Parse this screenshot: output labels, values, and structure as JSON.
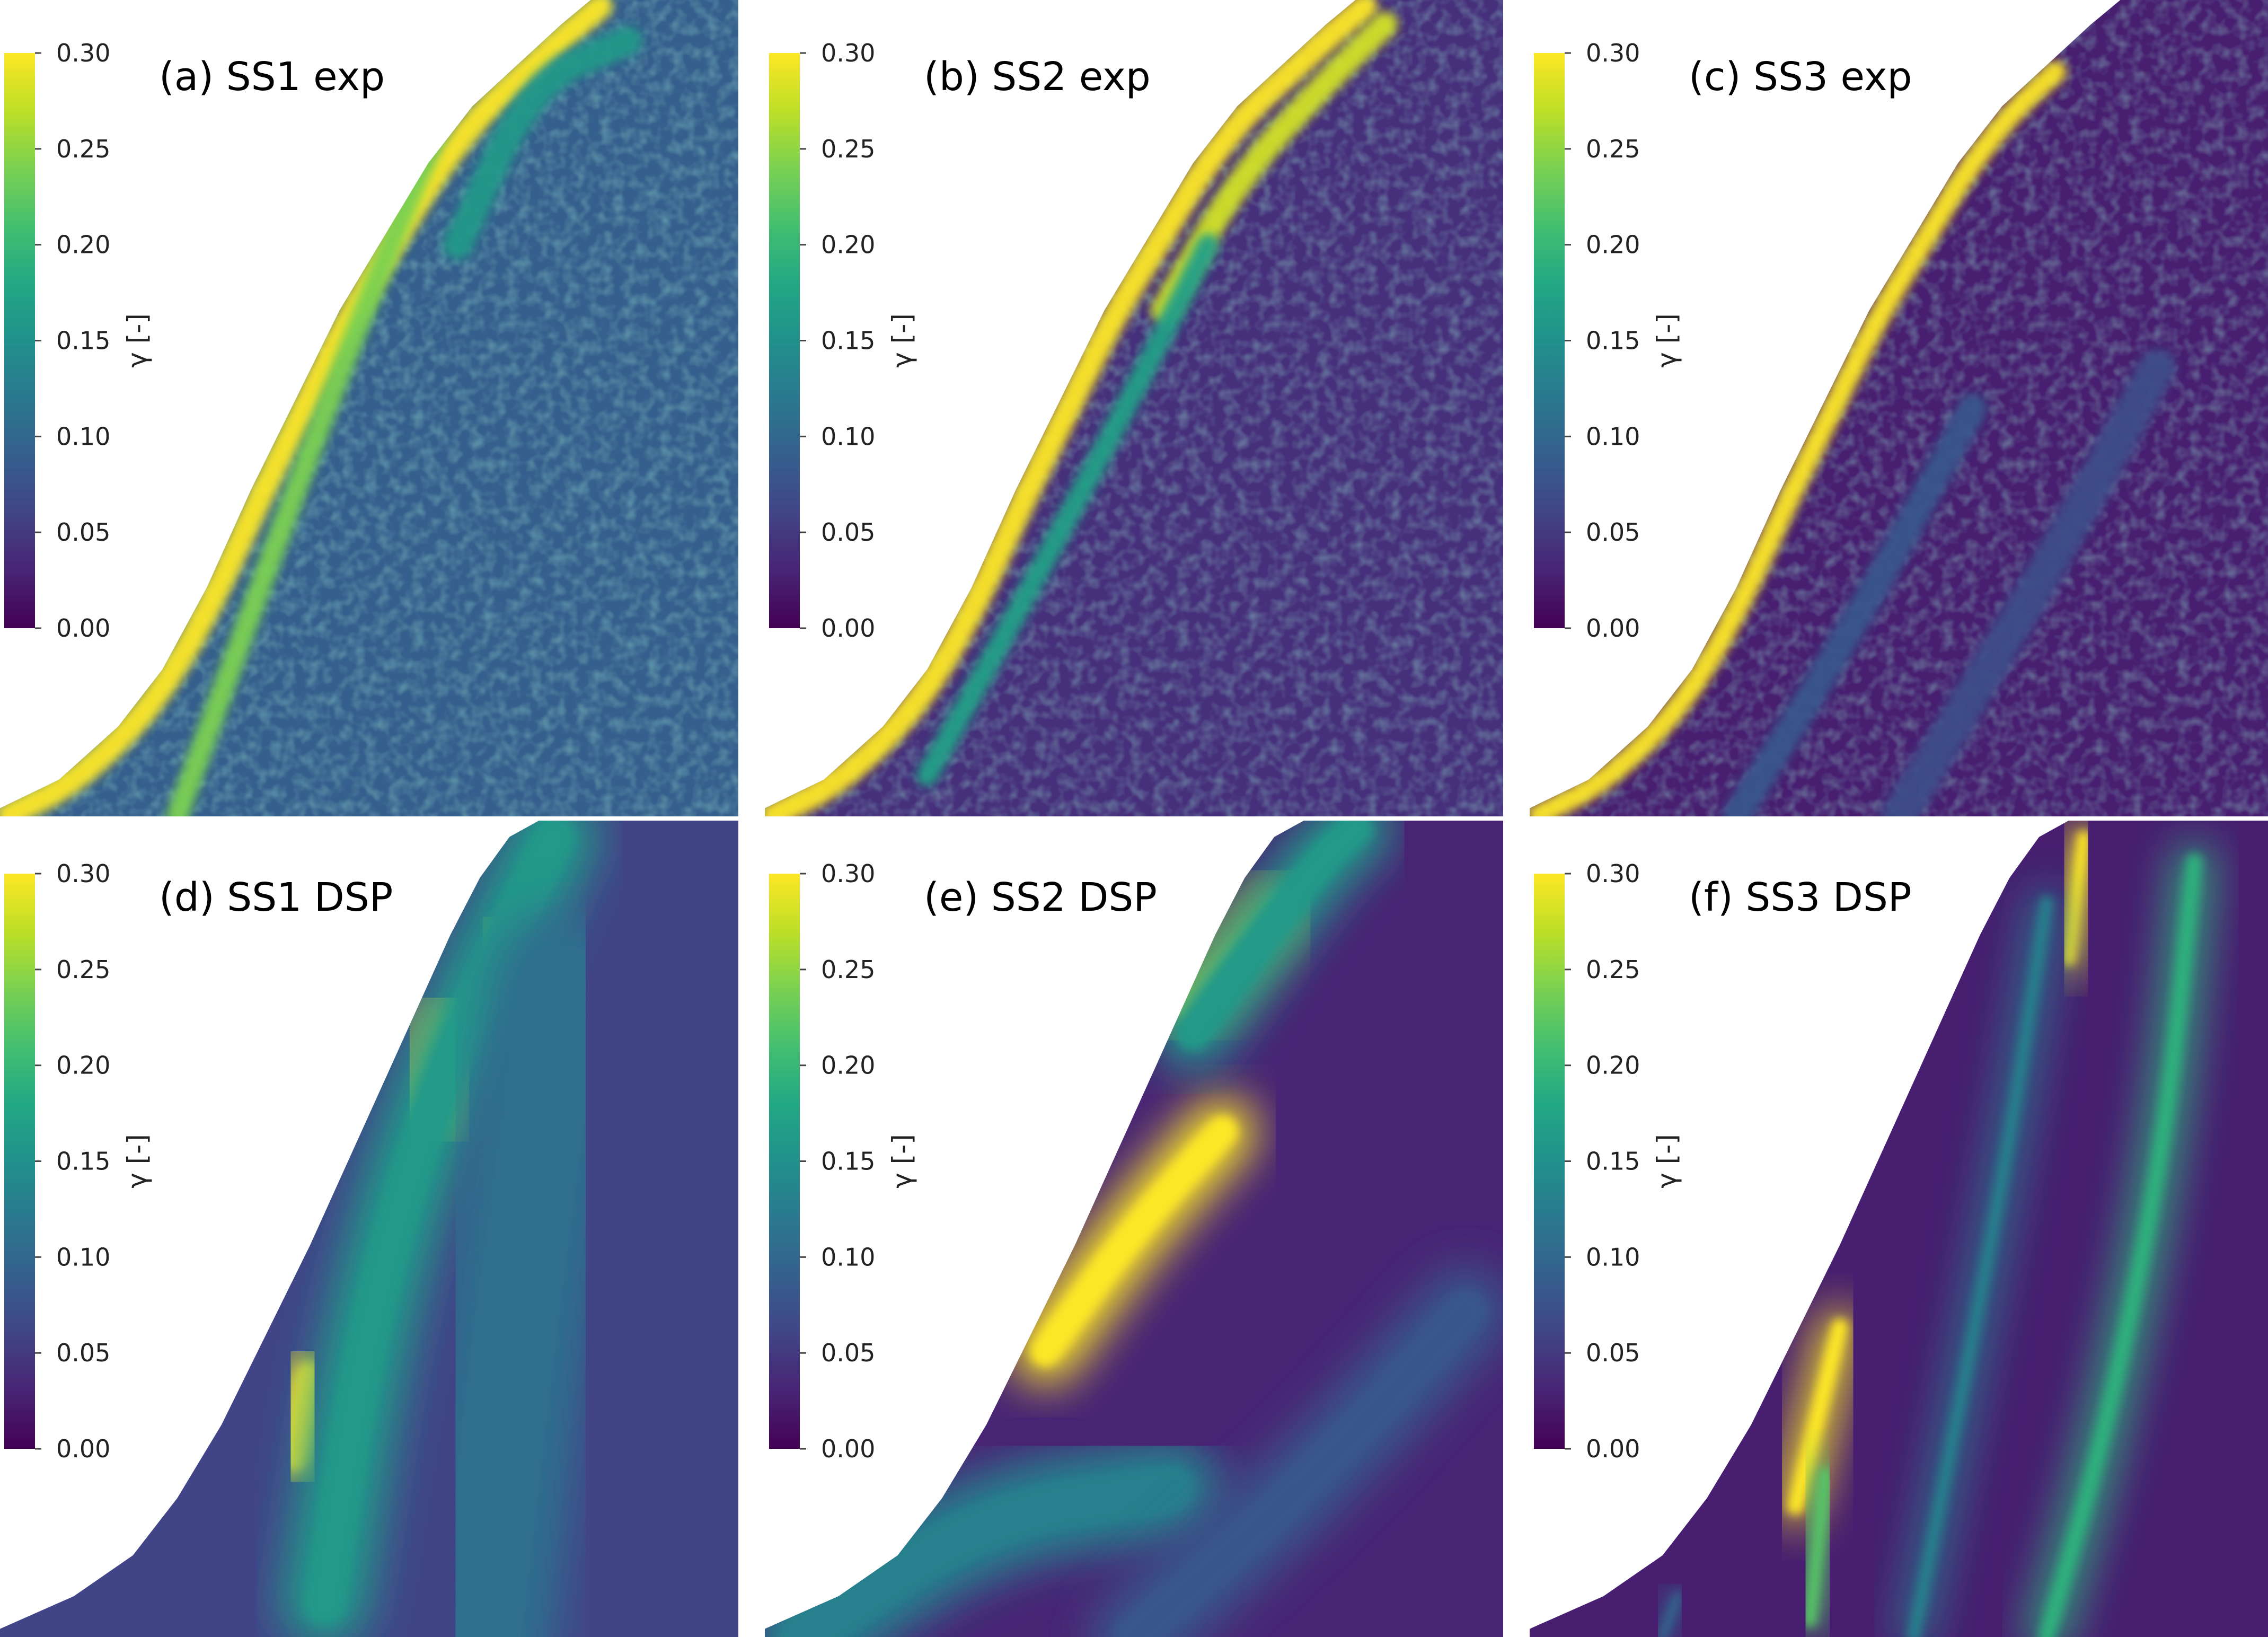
{
  "chart_data": {
    "type": "heatmap",
    "layout": "2x3 grid",
    "colormap": "viridis",
    "quantity_symbol": "γ",
    "colorbar": {
      "title": "γ [-]",
      "range": [
        0.0,
        0.3
      ],
      "ticks": [
        "0.30",
        "0.25",
        "0.20",
        "0.15",
        "0.10",
        "0.05",
        "0.00"
      ]
    },
    "panels": [
      {
        "id": "a",
        "title": "(a) SS1 exp",
        "background_level": 0.09,
        "bands": [
          {
            "level": 0.3,
            "along_path": "slope-face",
            "width": 0.035,
            "from": 0.05,
            "to": 0.98
          },
          {
            "level": 0.24,
            "path": [
              [
                0.24,
                1.0
              ],
              [
                0.42,
                0.55
              ],
              [
                0.55,
                0.25
              ],
              [
                0.62,
                0.1
              ]
            ],
            "width": 0.03
          },
          {
            "level": 0.16,
            "path": [
              [
                0.62,
                0.3
              ],
              [
                0.72,
                0.1
              ],
              [
                0.85,
                0.05
              ]
            ],
            "width": 0.04
          }
        ]
      },
      {
        "id": "b",
        "title": "(b) SS2 exp",
        "background_level": 0.04,
        "bands": [
          {
            "level": 0.3,
            "along_path": "slope-face",
            "width": 0.035,
            "from": 0.02,
            "to": 0.98
          },
          {
            "level": 0.28,
            "path": [
              [
                0.54,
                0.38
              ],
              [
                0.64,
                0.22
              ],
              [
                0.76,
                0.1
              ],
              [
                0.84,
                0.03
              ]
            ],
            "width": 0.035
          },
          {
            "level": 0.17,
            "path": [
              [
                0.22,
                0.95
              ],
              [
                0.36,
                0.72
              ],
              [
                0.5,
                0.48
              ],
              [
                0.6,
                0.3
              ]
            ],
            "width": 0.03
          }
        ]
      },
      {
        "id": "c",
        "title": "(c) SS3 exp",
        "background_level": 0.025,
        "bands": [
          {
            "level": 0.3,
            "along_path": "slope-face",
            "width": 0.03,
            "from": 0.05,
            "to": 0.8
          },
          {
            "level": 0.08,
            "path": [
              [
                0.28,
                1.0
              ],
              [
                0.45,
                0.75
              ],
              [
                0.6,
                0.5
              ]
            ],
            "width": 0.04
          },
          {
            "level": 0.07,
            "path": [
              [
                0.5,
                1.0
              ],
              [
                0.7,
                0.7
              ],
              [
                0.85,
                0.45
              ]
            ],
            "width": 0.05
          }
        ]
      },
      {
        "id": "d",
        "title": "(d) SS1 DSP",
        "background_level": 0.06,
        "bands": [
          {
            "level": 0.3,
            "path": [
              [
                0.4,
                0.78
              ],
              [
                0.42,
                0.68
              ]
            ],
            "width": 0.08
          },
          {
            "level": 0.3,
            "path": [
              [
                0.57,
                0.36
              ],
              [
                0.62,
                0.25
              ]
            ],
            "width": 0.1
          },
          {
            "level": 0.28,
            "path": [
              [
                0.66,
                0.17
              ],
              [
                0.68,
                0.13
              ]
            ],
            "width": 0.06
          },
          {
            "level": 0.16,
            "path": [
              [
                0.44,
                0.96
              ],
              [
                0.5,
                0.6
              ],
              [
                0.6,
                0.3
              ],
              [
                0.75,
                0.02
              ]
            ],
            "width": 0.12
          },
          {
            "level": 0.11,
            "path": [
              [
                0.65,
                1.0
              ],
              [
                0.7,
                0.6
              ],
              [
                0.76,
                0.2
              ]
            ],
            "width": 0.2
          }
        ]
      },
      {
        "id": "e",
        "title": "(e) SS2 DSP",
        "background_level": 0.03,
        "bands": [
          {
            "level": 0.3,
            "path": [
              [
                0.38,
                0.65
              ],
              [
                0.5,
                0.5
              ],
              [
                0.62,
                0.38
              ]
            ],
            "width": 0.09
          },
          {
            "level": 0.29,
            "path": [
              [
                0.57,
                0.23
              ],
              [
                0.7,
                0.1
              ]
            ],
            "width": 0.07
          },
          {
            "level": 0.16,
            "path": [
              [
                0.58,
                0.26
              ],
              [
                0.75,
                0.05
              ],
              [
                0.8,
                0.01
              ]
            ],
            "width": 0.1
          },
          {
            "level": 0.13,
            "path": [
              [
                0.05,
                1.0
              ],
              [
                0.3,
                0.85
              ],
              [
                0.55,
                0.82
              ]
            ],
            "width": 0.14
          },
          {
            "level": 0.08,
            "path": [
              [
                0.5,
                1.0
              ],
              [
                0.75,
                0.8
              ],
              [
                0.95,
                0.6
              ]
            ],
            "width": 0.12
          }
        ]
      },
      {
        "id": "f",
        "title": "(f) SS3 DSP",
        "background_level": 0.025,
        "bands": [
          {
            "level": 0.3,
            "path": [
              [
                0.36,
                0.84
              ],
              [
                0.42,
                0.62
              ]
            ],
            "width": 0.05
          },
          {
            "level": 0.3,
            "path": [
              [
                0.73,
                0.17
              ],
              [
                0.75,
                0.02
              ]
            ],
            "width": 0.04
          },
          {
            "level": 0.22,
            "path": [
              [
                0.38,
                0.98
              ],
              [
                0.4,
                0.8
              ]
            ],
            "width": 0.04
          },
          {
            "level": 0.19,
            "path": [
              [
                0.9,
                0.05
              ],
              [
                0.86,
                0.4
              ],
              [
                0.78,
                0.75
              ],
              [
                0.7,
                1.0
              ]
            ],
            "width": 0.05
          },
          {
            "level": 0.13,
            "path": [
              [
                0.7,
                0.1
              ],
              [
                0.64,
                0.45
              ],
              [
                0.52,
                1.0
              ]
            ],
            "width": 0.04
          },
          {
            "level": 0.1,
            "path": [
              [
                0.18,
                1.0
              ],
              [
                0.2,
                0.95
              ]
            ],
            "width": 0.03
          }
        ]
      }
    ]
  }
}
